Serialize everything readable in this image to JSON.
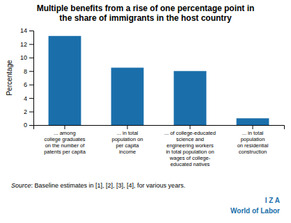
{
  "chart_data": {
    "type": "bar",
    "title": "Multiple benefits from a rise of one percentage point in\nthe share of immigrants in the host country",
    "categories": [
      "... among\ncollege graduates\non the number of\npatents per capita",
      "... in total\npopulation on\nper capita\nincome",
      "... of college-educated\nscience and\nengineering workers\nin total population on\nwages of college-\neducated natives",
      "... in total\npopulation\non residential\nconstruction"
    ],
    "values": [
      13.2,
      8.5,
      8.0,
      1.0
    ],
    "color": "#1a6fab",
    "ylabel": "Percentage",
    "ylim": [
      0,
      14
    ],
    "yticks": [
      0,
      2,
      4,
      6,
      8,
      10,
      12,
      14
    ],
    "grid": false,
    "annotations": [
      "Source",
      ": Baseline estimates in [1], [2], [3], [4], for various years.",
      "I Z A",
      "World of Labor"
    ]
  }
}
